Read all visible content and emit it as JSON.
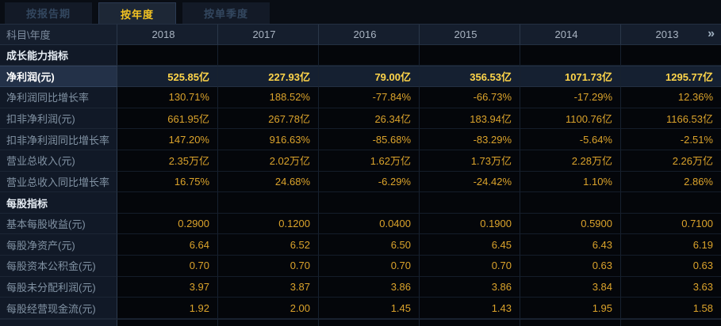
{
  "tabs": [
    {
      "label": "按报告期",
      "active": false
    },
    {
      "label": "按年度",
      "active": true
    },
    {
      "label": "按单季度",
      "active": false
    }
  ],
  "table": {
    "corner_header": "科目\\年度",
    "year_headers": [
      "2018",
      "2017",
      "2016",
      "2015",
      "2014",
      "2013"
    ],
    "more_icon": "»",
    "rows": [
      {
        "type": "section",
        "label": "成长能力指标",
        "values": [
          "",
          "",
          "",
          "",
          "",
          ""
        ]
      },
      {
        "type": "highlight",
        "label": "净利润(元)",
        "values": [
          "525.85亿",
          "227.93亿",
          "79.00亿",
          "356.53亿",
          "1071.73亿",
          "1295.77亿"
        ]
      },
      {
        "type": "data",
        "label": "净利润同比增长率",
        "values": [
          "130.71%",
          "188.52%",
          "-77.84%",
          "-66.73%",
          "-17.29%",
          "12.36%"
        ]
      },
      {
        "type": "data",
        "label": "扣非净利润(元)",
        "values": [
          "661.95亿",
          "267.78亿",
          "26.34亿",
          "183.94亿",
          "1100.76亿",
          "1166.53亿"
        ]
      },
      {
        "type": "data",
        "label": "扣非净利润同比增长率",
        "values": [
          "147.20%",
          "916.63%",
          "-85.68%",
          "-83.29%",
          "-5.64%",
          "-2.51%"
        ]
      },
      {
        "type": "data",
        "label": "营业总收入(元)",
        "values": [
          "2.35万亿",
          "2.02万亿",
          "1.62万亿",
          "1.73万亿",
          "2.28万亿",
          "2.26万亿"
        ]
      },
      {
        "type": "data",
        "label": "营业总收入同比增长率",
        "values": [
          "16.75%",
          "24.68%",
          "-6.29%",
          "-24.42%",
          "1.10%",
          "2.86%"
        ]
      },
      {
        "type": "section",
        "label": "每股指标",
        "values": [
          "",
          "",
          "",
          "",
          "",
          ""
        ]
      },
      {
        "type": "data",
        "label": "基本每股收益(元)",
        "values": [
          "0.2900",
          "0.1200",
          "0.0400",
          "0.1900",
          "0.5900",
          "0.7100"
        ]
      },
      {
        "type": "data",
        "label": "每股净资产(元)",
        "values": [
          "6.64",
          "6.52",
          "6.50",
          "6.45",
          "6.43",
          "6.19"
        ]
      },
      {
        "type": "data",
        "label": "每股资本公积金(元)",
        "values": [
          "0.70",
          "0.70",
          "0.70",
          "0.70",
          "0.63",
          "0.63"
        ]
      },
      {
        "type": "data",
        "label": "每股未分配利润(元)",
        "values": [
          "3.97",
          "3.87",
          "3.86",
          "3.86",
          "3.84",
          "3.63"
        ]
      },
      {
        "type": "data",
        "label": "每股经营现金流(元)",
        "values": [
          "1.92",
          "2.00",
          "1.45",
          "1.43",
          "1.95",
          "1.58"
        ]
      }
    ]
  },
  "colors": {
    "accent_yellow": "#f3c322",
    "value_orange": "#dba32b",
    "highlight_value_yellow": "#ffd54a",
    "header_text": "#a9b4c2",
    "label_text": "#8293a4",
    "background": "#0a0e15",
    "cell_background": "#04060a",
    "highlight_row_background": "#233148"
  }
}
